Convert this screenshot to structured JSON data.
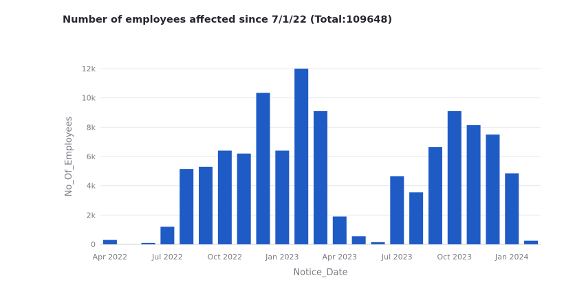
{
  "title": "Number of employees affected since 7/1/22 (Total:109648)",
  "chart_data": {
    "type": "bar",
    "title": "Number of employees affected since 7/1/22 (Total:109648)",
    "xlabel": "Notice_Date",
    "ylabel": "No_Of_Employees",
    "categories": [
      "2022-04",
      "2022-05",
      "2022-06",
      "2022-07",
      "2022-08",
      "2022-09",
      "2022-10",
      "2022-11",
      "2022-12",
      "2023-01",
      "2023-02",
      "2023-03",
      "2023-04",
      "2023-05",
      "2023-06",
      "2023-07",
      "2023-08",
      "2023-09",
      "2023-10",
      "2023-11",
      "2023-12",
      "2024-01",
      "2024-02"
    ],
    "values": [
      300,
      0,
      100,
      1200,
      5150,
      5300,
      6400,
      6200,
      10350,
      6400,
      12000,
      9100,
      1900,
      550,
      150,
      4650,
      3550,
      6650,
      9100,
      8150,
      7500,
      4850,
      250
    ],
    "ylim": [
      0,
      12000
    ],
    "y_ticks": [
      0,
      2000,
      4000,
      6000,
      8000,
      10000,
      12000
    ],
    "y_tick_labels": [
      "0",
      "2k",
      "4k",
      "6k",
      "8k",
      "10k",
      "12k"
    ],
    "x_tick_labels": [
      {
        "label": "Apr 2022",
        "category": "2022-04"
      },
      {
        "label": "Jul 2022",
        "category": "2022-07"
      },
      {
        "label": "Oct 2022",
        "category": "2022-10"
      },
      {
        "label": "Jan 2023",
        "category": "2023-01"
      },
      {
        "label": "Apr 2023",
        "category": "2023-04"
      },
      {
        "label": "Jul 2023",
        "category": "2023-07"
      },
      {
        "label": "Oct 2023",
        "category": "2023-10"
      },
      {
        "label": "Jan 2024",
        "category": "2024-01"
      }
    ],
    "grid": true,
    "color": "#1f5bc4"
  }
}
